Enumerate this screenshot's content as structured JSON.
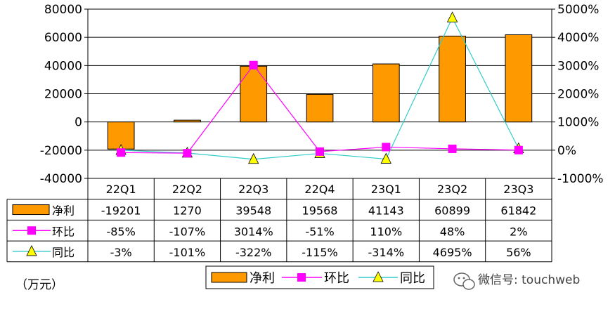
{
  "chart_data": {
    "type": "bar",
    "categories": [
      "22Q1",
      "22Q2",
      "22Q3",
      "22Q4",
      "23Q1",
      "23Q2",
      "23Q3"
    ],
    "ylim": [
      -40000,
      80000
    ],
    "y2lim": [
      -1000,
      5000
    ],
    "y_ticks": [
      80000,
      60000,
      40000,
      20000,
      0,
      -20000,
      -40000
    ],
    "y2_ticks": [
      "5000%",
      "4000%",
      "3000%",
      "2000%",
      "1000%",
      "0%",
      "-1000%"
    ],
    "grid": true,
    "legend_position": "bottom",
    "series": [
      {
        "name": "净利",
        "type": "bar",
        "axis": "left",
        "color": "#FF9900",
        "values": [
          -19201,
          1270,
          39548,
          19568,
          41143,
          60899,
          61842
        ],
        "labels": [
          "-19201",
          "1270",
          "39548",
          "19568",
          "41143",
          "60899",
          "61842"
        ]
      },
      {
        "name": "环比",
        "type": "line",
        "axis": "right",
        "color": "#FF00FF",
        "marker": "square",
        "values": [
          -85,
          -107,
          3014,
          -51,
          110,
          48,
          2
        ],
        "labels": [
          "-85%",
          "-107%",
          "3014%",
          "-51%",
          "110%",
          "48%",
          "2%"
        ]
      },
      {
        "name": "同比",
        "type": "line",
        "axis": "right",
        "color": "#33CCCC",
        "marker": "triangle",
        "marker_color": "#FFFF00",
        "values": [
          -3,
          -101,
          -322,
          -115,
          -314,
          4695,
          56
        ],
        "labels": [
          "-3%",
          "-101%",
          "-322%",
          "-115%",
          "-314%",
          "4695%",
          "56%"
        ]
      }
    ]
  },
  "unit_label": "（万元）",
  "watermark": "微信号: touchweb"
}
